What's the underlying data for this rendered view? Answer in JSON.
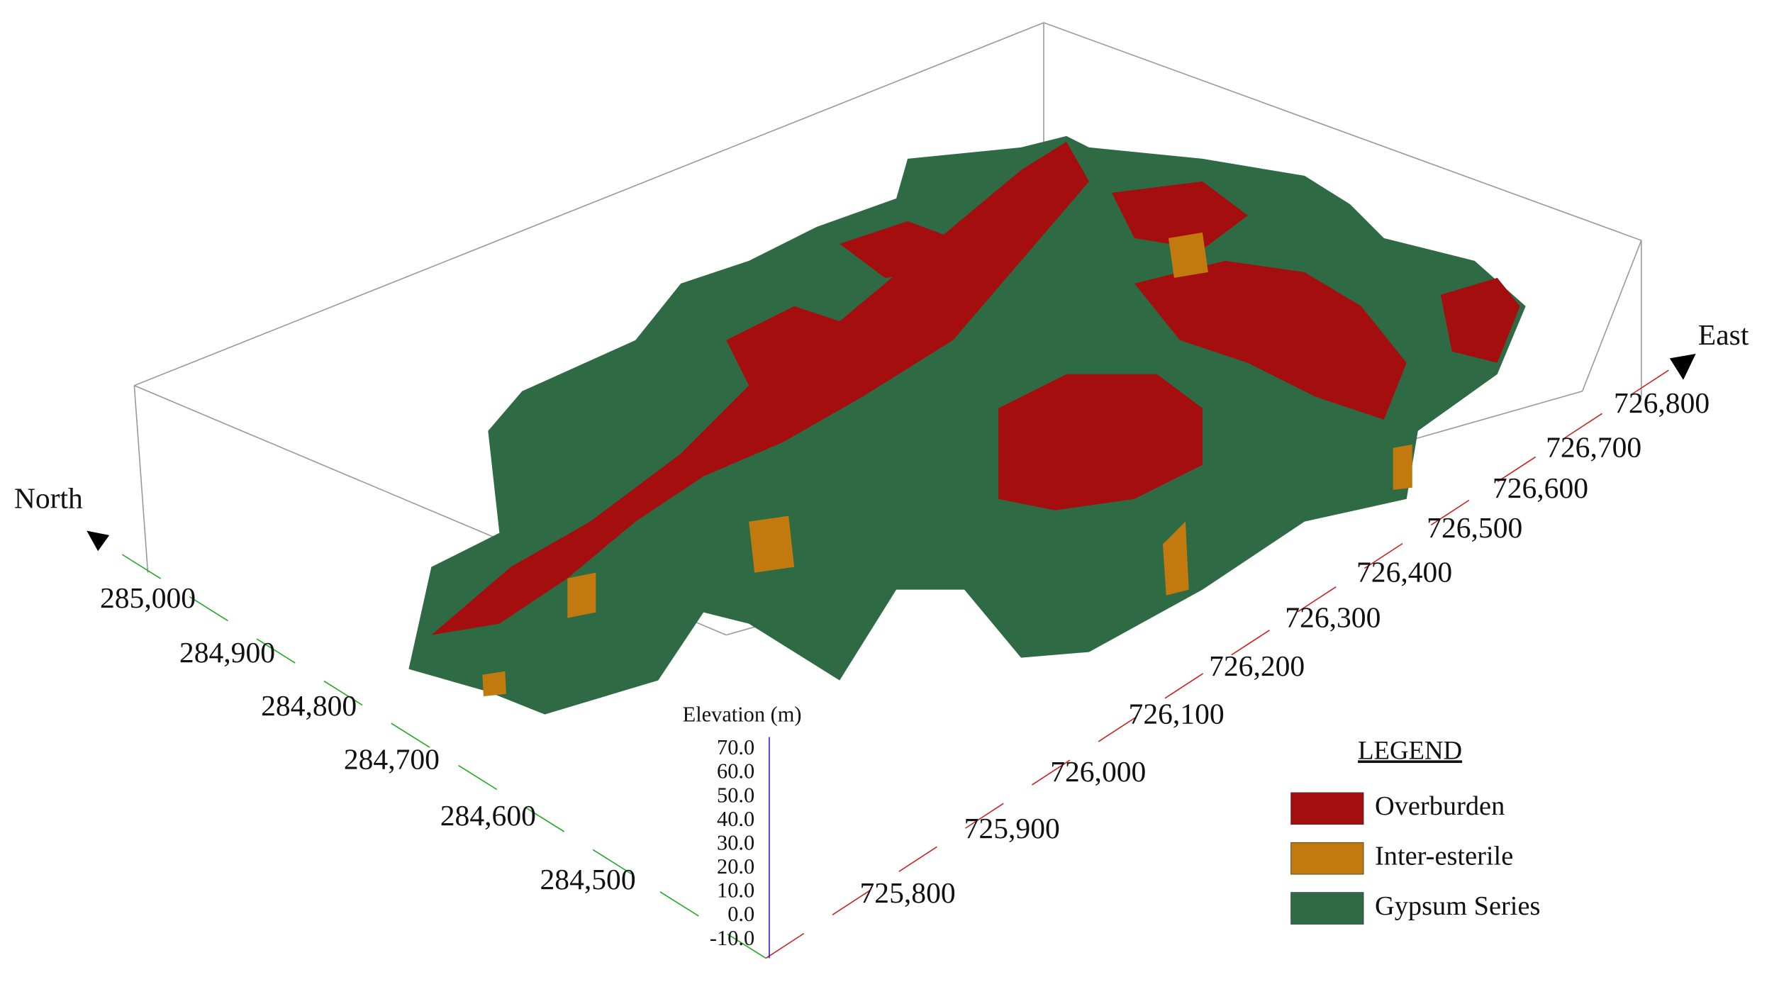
{
  "axes": {
    "north": {
      "label": "North",
      "ticks": [
        "285,000",
        "284,900",
        "284,800",
        "284,700",
        "284,600",
        "284,500"
      ]
    },
    "east": {
      "label": "East",
      "ticks": [
        "725,800",
        "725,900",
        "726,000",
        "726,100",
        "726,200",
        "726,300",
        "726,400",
        "726,500",
        "726,600",
        "726,700",
        "726,800"
      ]
    },
    "elevation": {
      "label": "Elevation (m)",
      "ticks": [
        "70.0",
        "60.0",
        "50.0",
        "40.0",
        "30.0",
        "20.0",
        "10.0",
        "0.0",
        "-10.0"
      ]
    }
  },
  "legend": {
    "title": "LEGEND",
    "items": [
      {
        "label": "Overburden",
        "color": "#a50e0e"
      },
      {
        "label": "Inter-esterile",
        "color": "#c27a0e"
      },
      {
        "label": "Gypsum Series",
        "color": "#2e6b45"
      }
    ]
  }
}
